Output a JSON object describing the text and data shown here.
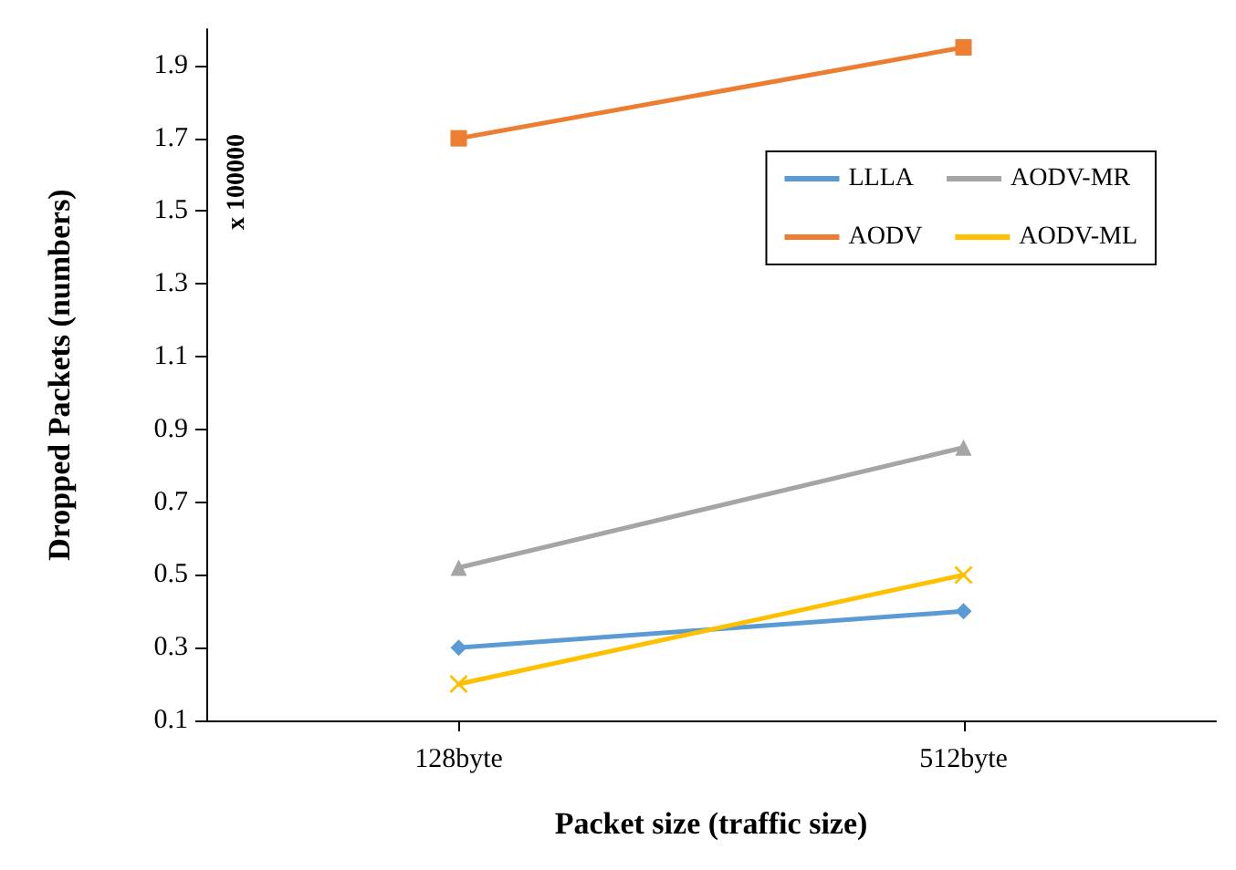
{
  "chart_data": {
    "type": "line",
    "xlabel": "Packet size (traffic size)",
    "ylabel": "Dropped Packets (numbers)",
    "annotations": [
      "x 100000"
    ],
    "categories": [
      "128byte",
      "512byte"
    ],
    "ylim": [
      0.1,
      2.0
    ],
    "yticks": [
      0.1,
      0.3,
      0.5,
      0.7,
      0.9,
      1.1,
      1.3,
      1.5,
      1.7,
      1.9
    ],
    "grid": false,
    "legend": "top right",
    "series": [
      {
        "name": "LLLA",
        "color": "#5b9bd5",
        "marker": "diamond",
        "values": [
          0.3,
          0.4
        ]
      },
      {
        "name": "AODV-MR",
        "color": "#a5a5a5",
        "marker": "triangle",
        "values": [
          0.52,
          0.85
        ]
      },
      {
        "name": "AODV",
        "color": "#ed7d31",
        "marker": "square",
        "values": [
          1.7,
          1.95
        ]
      },
      {
        "name": "AODV-ML",
        "color": "#ffc000",
        "marker": "cross",
        "values": [
          0.2,
          0.5
        ]
      }
    ]
  }
}
